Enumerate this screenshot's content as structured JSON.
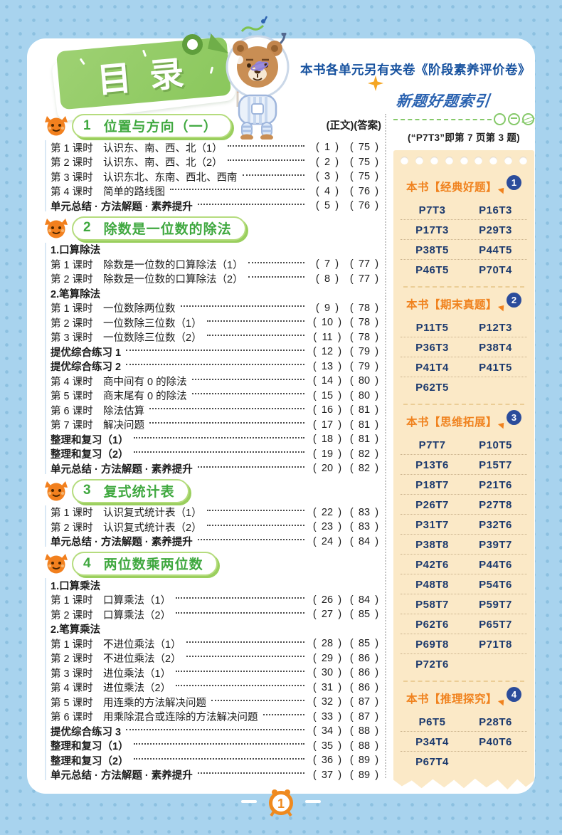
{
  "page": {
    "toc_title": "目录",
    "top_note": "本书各单元另有夹卷《阶段素养评价卷》",
    "page_number": "1"
  },
  "toc": {
    "header_right": "(正文)(答案)",
    "chapters": [
      {
        "num": "1",
        "title": "位置与方向（一）",
        "rows": [
          {
            "t": "lesson",
            "label": "第 1 课时",
            "text": "认识东、南、西、北（1）",
            "p": "1",
            "a": "75"
          },
          {
            "t": "lesson",
            "label": "第 2 课时",
            "text": "认识东、南、西、北（2）",
            "p": "2",
            "a": "75"
          },
          {
            "t": "lesson",
            "label": "第 3 课时",
            "text": "认识东北、东南、西北、西南",
            "p": "3",
            "a": "75"
          },
          {
            "t": "lesson",
            "label": "第 4 课时",
            "text": "简单的路线图",
            "p": "4",
            "a": "76"
          },
          {
            "t": "b",
            "text": "单元总结 · 方法解题 · 素养提升",
            "p": "5",
            "a": "76"
          }
        ]
      },
      {
        "num": "2",
        "title": "除数是一位数的除法",
        "rows": [
          {
            "t": "s",
            "text": "1.口算除法"
          },
          {
            "t": "lesson",
            "label": "第 1 课时",
            "text": "除数是一位数的口算除法（1）",
            "p": "7",
            "a": "77"
          },
          {
            "t": "lesson",
            "label": "第 2 课时",
            "text": "除数是一位数的口算除法（2）",
            "p": "8",
            "a": "77"
          },
          {
            "t": "s",
            "text": "2.笔算除法"
          },
          {
            "t": "lesson",
            "label": "第 1 课时",
            "text": "一位数除两位数",
            "p": "9",
            "a": "78"
          },
          {
            "t": "lesson",
            "label": "第 2 课时",
            "text": "一位数除三位数（1）",
            "p": "10",
            "a": "78"
          },
          {
            "t": "lesson",
            "label": "第 3 课时",
            "text": "一位数除三位数（2）",
            "p": "11",
            "a": "78"
          },
          {
            "t": "b",
            "text": "提优综合练习 1",
            "p": "12",
            "a": "79"
          },
          {
            "t": "b",
            "text": "提优综合练习 2",
            "p": "13",
            "a": "79"
          },
          {
            "t": "lesson",
            "label": "第 4 课时",
            "text": "商中间有 0 的除法",
            "p": "14",
            "a": "80"
          },
          {
            "t": "lesson",
            "label": "第 5 课时",
            "text": "商末尾有 0 的除法",
            "p": "15",
            "a": "80"
          },
          {
            "t": "lesson",
            "label": "第 6 课时",
            "text": "除法估算",
            "p": "16",
            "a": "81"
          },
          {
            "t": "lesson",
            "label": "第 7 课时",
            "text": "解决问题",
            "p": "17",
            "a": "81"
          },
          {
            "t": "b",
            "text": "整理和复习（1）",
            "p": "18",
            "a": "81"
          },
          {
            "t": "b",
            "text": "整理和复习（2）",
            "p": "19",
            "a": "82"
          },
          {
            "t": "b",
            "text": "单元总结 · 方法解题 · 素养提升",
            "p": "20",
            "a": "82"
          }
        ]
      },
      {
        "num": "3",
        "title": "复式统计表",
        "rows": [
          {
            "t": "lesson",
            "label": "第 1 课时",
            "text": "认识复式统计表（1）",
            "p": "22",
            "a": "83"
          },
          {
            "t": "lesson",
            "label": "第 2 课时",
            "text": "认识复式统计表（2）",
            "p": "23",
            "a": "83"
          },
          {
            "t": "b",
            "text": "单元总结 · 方法解题 · 素养提升",
            "p": "24",
            "a": "84"
          }
        ]
      },
      {
        "num": "4",
        "title": "两位数乘两位数",
        "rows": [
          {
            "t": "s",
            "text": "1.口算乘法"
          },
          {
            "t": "lesson",
            "label": "第 1 课时",
            "text": "口算乘法（1）",
            "p": "26",
            "a": "84"
          },
          {
            "t": "lesson",
            "label": "第 2 课时",
            "text": "口算乘法（2）",
            "p": "27",
            "a": "85"
          },
          {
            "t": "s",
            "text": "2.笔算乘法"
          },
          {
            "t": "lesson",
            "label": "第 1 课时",
            "text": "不进位乘法（1）",
            "p": "28",
            "a": "85"
          },
          {
            "t": "lesson",
            "label": "第 2 课时",
            "text": "不进位乘法（2）",
            "p": "29",
            "a": "86"
          },
          {
            "t": "lesson",
            "label": "第 3 课时",
            "text": "进位乘法（1）",
            "p": "30",
            "a": "86"
          },
          {
            "t": "lesson",
            "label": "第 4 课时",
            "text": "进位乘法（2）",
            "p": "31",
            "a": "86"
          },
          {
            "t": "lesson",
            "label": "第 5 课时",
            "text": "用连乘的方法解决问题",
            "p": "32",
            "a": "87"
          },
          {
            "t": "lesson",
            "label": "第 6 课时",
            "text": "用乘除混合或连除的方法解决问题",
            "p": "33",
            "a": "87"
          },
          {
            "t": "b",
            "text": "提优综合练习 3",
            "p": "34",
            "a": "88"
          },
          {
            "t": "b",
            "text": "整理和复习（1）",
            "p": "35",
            "a": "88"
          },
          {
            "t": "b",
            "text": "整理和复习（2）",
            "p": "36",
            "a": "89"
          },
          {
            "t": "b",
            "text": "单元总结 · 方法解题 · 素养提升",
            "p": "37",
            "a": "89"
          }
        ]
      }
    ]
  },
  "sidebar": {
    "title": "新题好题索引",
    "hint": "(“P7T3”即第 7 页第 3 题)",
    "sections": [
      {
        "label": "本书【经典好题】",
        "num": "1",
        "codes": [
          [
            "P7T3",
            "P16T3"
          ],
          [
            "P17T3",
            "P29T3"
          ],
          [
            "P38T5",
            "P44T5"
          ],
          [
            "P46T5",
            "P70T4"
          ]
        ]
      },
      {
        "label": "本书【期末真题】",
        "num": "2",
        "codes": [
          [
            "P11T5",
            "P12T3"
          ],
          [
            "P36T3",
            "P38T4"
          ],
          [
            "P41T4",
            "P41T5"
          ],
          [
            "P62T5",
            ""
          ]
        ]
      },
      {
        "label": "本书【思维拓展】",
        "num": "3",
        "codes": [
          [
            "P7T7",
            "P10T5"
          ],
          [
            "P13T6",
            "P15T7"
          ],
          [
            "P18T7",
            "P21T6"
          ],
          [
            "P26T7",
            "P27T8"
          ],
          [
            "P31T7",
            "P32T6"
          ],
          [
            "P38T8",
            "P39T7"
          ],
          [
            "P42T6",
            "P44T6"
          ],
          [
            "P48T8",
            "P54T6"
          ],
          [
            "P58T7",
            "P59T7"
          ],
          [
            "P62T6",
            "P65T7"
          ],
          [
            "P69T8",
            "P71T8"
          ],
          [
            "P72T6",
            ""
          ]
        ]
      },
      {
        "label": "本书【推理探究】",
        "num": "4",
        "codes": [
          [
            "P6T5",
            "P28T6"
          ],
          [
            "P34T4",
            "P40T6"
          ],
          [
            "P67T4",
            ""
          ]
        ]
      }
    ]
  },
  "colors": {
    "accent_green": "#3FA83F",
    "accent_orange": "#F0821E",
    "navy": "#1C3A6E",
    "index_blue": "#2A62B0",
    "note_blue": "#17529F",
    "cream": "#FBE9C7",
    "border_blue": "#A8D3EE"
  }
}
